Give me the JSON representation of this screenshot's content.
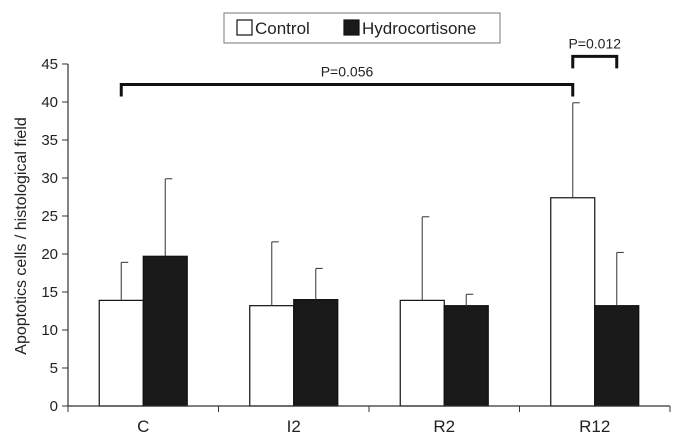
{
  "chart_data": {
    "type": "bar",
    "categories": [
      "C",
      "I2",
      "R2",
      "R12"
    ],
    "series": [
      {
        "name": "Control",
        "values": [
          13.9,
          13.2,
          13.9,
          27.4
        ],
        "errors": [
          5.0,
          8.4,
          11.0,
          12.5
        ],
        "color": "#ffffff"
      },
      {
        "name": "Hydrocortisone",
        "values": [
          19.7,
          14.0,
          13.2,
          13.2
        ],
        "errors": [
          10.2,
          4.1,
          1.5,
          7.0
        ],
        "color": "#1a1a1a"
      }
    ],
    "title": "",
    "xlabel": "",
    "ylabel": "Apoptotics cells / histological field",
    "ylim": [
      0,
      45
    ],
    "yticks": [
      0,
      5,
      10,
      15,
      20,
      25,
      30,
      35,
      40,
      45
    ],
    "grid": false,
    "legend": "top-center",
    "annotations": [
      {
        "text": "P=0.056",
        "from": {
          "category": "C",
          "series": "Control"
        },
        "to": {
          "category": "R12",
          "series": "Control"
        },
        "y": 42.3
      },
      {
        "text": "P=0.012",
        "from": {
          "category": "R12",
          "series": "Control"
        },
        "to": {
          "category": "R12",
          "series": "Hydrocortisone"
        },
        "y": 46.0
      }
    ]
  }
}
